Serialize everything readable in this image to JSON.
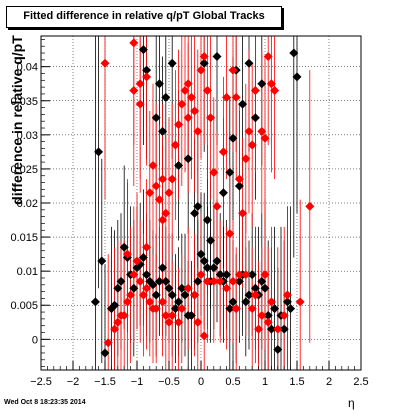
{
  "title": "Fitted difference in relative q/pT  Global Tracks",
  "ylabel": "difference in relative q/pT",
  "xlabel": "η",
  "footer": "Wed Oct  8 18:23:35 2014",
  "colors": {
    "series_black": "#000000",
    "series_red": "#ff0000",
    "grid": "#000000",
    "frame": "#000000"
  },
  "chart_data": {
    "type": "scatter",
    "title": "Fitted difference in relative q/pT  Global Tracks",
    "xlabel": "η",
    "ylabel": "difference in relative q/pT",
    "xlim": [
      -2.5,
      2.5
    ],
    "ylim": [
      -0.0045,
      0.0445
    ],
    "x_ticks": [
      -2.5,
      -2,
      -1.5,
      -1,
      -0.5,
      0,
      0.5,
      1,
      1.5,
      2,
      2.5
    ],
    "x_tick_labels": [
      "−2.5",
      "−2",
      "−1.5",
      "−1",
      "−0.5",
      "0",
      "0.5",
      "1",
      "1.5",
      "2",
      "2.5"
    ],
    "y_ticks": [
      0,
      0.005,
      0.01,
      0.015,
      0.02,
      0.025,
      0.03,
      0.035,
      0.04
    ],
    "y_tick_labels": [
      "0",
      "0.005",
      "0.01",
      "0.015",
      "0.02",
      "0.025",
      "0.03",
      "0.035",
      "0.04"
    ],
    "grid": true,
    "markers": "diamond",
    "series": [
      {
        "color": "#000000",
        "points": [
          [
            -1.65,
            0.0055,
            0.041
          ],
          [
            -1.6,
            0.0275,
            0.02
          ],
          [
            -1.55,
            0.0115,
            0.015
          ],
          [
            -1.5,
            -0.002,
            0.013
          ],
          [
            -1.4,
            0.0045,
            0.012
          ],
          [
            -1.35,
            0.005,
            0.011
          ],
          [
            -1.3,
            0.0075,
            0.01
          ],
          [
            -1.25,
            0.0085,
            0.01
          ],
          [
            -1.2,
            0.0135,
            0.012
          ],
          [
            -1.15,
            0.012,
            0.011
          ],
          [
            -1.1,
            0.0095,
            0.01
          ],
          [
            -1.05,
            0.0075,
            0.01
          ],
          [
            -1.0,
            0.0105,
            0.009
          ],
          [
            -0.95,
            0.011,
            0.009
          ],
          [
            -0.9,
            0.012,
            0.01
          ],
          [
            -0.85,
            0.0095,
            0.009
          ],
          [
            -0.8,
            0.0085,
            0.009
          ],
          [
            -0.75,
            0.008,
            0.008
          ],
          [
            -0.7,
            0.0065,
            0.009
          ],
          [
            -0.65,
            0.0085,
            0.008
          ],
          [
            -0.6,
            0.0105,
            0.01
          ],
          [
            -0.55,
            0.0085,
            0.008
          ],
          [
            -0.5,
            0.0075,
            0.008
          ],
          [
            -0.45,
            0.0065,
            0.009
          ],
          [
            -0.4,
            0.0045,
            0.008
          ],
          [
            -0.35,
            0.0055,
            0.008
          ],
          [
            -0.3,
            0.0075,
            0.008
          ],
          [
            -0.25,
            0.0065,
            0.009
          ],
          [
            -0.2,
            0.0035,
            0.008
          ],
          [
            -0.15,
            0.0035,
            0.008
          ],
          [
            -0.1,
            0.0065,
            0.008
          ],
          [
            -0.05,
            0.0085,
            0.009
          ],
          [
            0.0,
            0.0125,
            0.009
          ],
          [
            0.05,
            0.0115,
            0.01
          ],
          [
            0.1,
            0.0105,
            0.009
          ],
          [
            0.15,
            0.0085,
            0.009
          ],
          [
            0.2,
            0.0105,
            0.009
          ],
          [
            0.25,
            0.0115,
            0.009
          ],
          [
            0.3,
            0.0095,
            0.009
          ],
          [
            0.35,
            0.0085,
            0.009
          ],
          [
            0.4,
            0.0095,
            0.008
          ],
          [
            0.45,
            0.0045,
            0.009
          ],
          [
            0.5,
            0.0055,
            0.009
          ],
          [
            0.55,
            0.0045,
            0.008
          ],
          [
            0.6,
            0.0085,
            0.009
          ],
          [
            0.65,
            0.0095,
            0.009
          ],
          [
            0.7,
            0.0055,
            0.008
          ],
          [
            0.75,
            0.0065,
            0.008
          ],
          [
            0.8,
            0.0095,
            0.009
          ],
          [
            0.85,
            0.0075,
            0.009
          ],
          [
            0.9,
            0.0065,
            0.01
          ],
          [
            0.95,
            0.0085,
            0.01
          ],
          [
            1.0,
            0.0075,
            0.011
          ],
          [
            1.05,
            0.0035,
            0.011
          ],
          [
            1.1,
            0.0015,
            0.012
          ],
          [
            1.15,
            0.0045,
            0.012
          ],
          [
            1.2,
            -0.0015,
            0.012
          ],
          [
            1.25,
            0.0035,
            0.013
          ],
          [
            1.3,
            0.0015,
            0.013
          ],
          [
            1.35,
            0.0055,
            0.014
          ],
          [
            1.4,
            0.0045,
            0.015
          ],
          [
            1.45,
            0.042,
            0.03
          ],
          [
            1.5,
            0.0385,
            0.02
          ],
          [
            -0.9,
            0.0425,
            0.014
          ],
          [
            -0.85,
            0.0395,
            0.013
          ],
          [
            -0.65,
            0.0375,
            0.012
          ],
          [
            -0.55,
            0.0355,
            0.012
          ],
          [
            -0.45,
            0.0405,
            0.014
          ],
          [
            -0.7,
            0.0325,
            0.012
          ],
          [
            -0.6,
            0.0305,
            0.011
          ],
          [
            -0.35,
            0.0255,
            0.011
          ],
          [
            -0.2,
            0.0265,
            0.011
          ],
          [
            0.05,
            0.0405,
            0.013
          ],
          [
            0.25,
            0.0415,
            0.013
          ],
          [
            0.55,
            0.0395,
            0.012
          ],
          [
            0.65,
            0.0345,
            0.012
          ],
          [
            0.75,
            0.0405,
            0.013
          ],
          [
            0.5,
            0.0295,
            0.012
          ],
          [
            0.45,
            0.0245,
            0.011
          ],
          [
            0.6,
            0.0225,
            0.011
          ],
          [
            0.85,
            0.0325,
            0.012
          ],
          [
            0.95,
            0.0375,
            0.012
          ],
          [
            -0.05,
            0.0195,
            0.011
          ],
          [
            0.1,
            0.0175,
            0.011
          ],
          [
            0.35,
            0.0215,
            0.011
          ],
          [
            -0.1,
            0.0185,
            0.011
          ],
          [
            0.15,
            0.0145,
            0.01
          ]
        ]
      },
      {
        "color": "#ff0000",
        "points": [
          [
            -1.5,
            0.0405,
            0.02
          ],
          [
            -1.45,
            -0.0005,
            0.013
          ],
          [
            -1.35,
            0.0015,
            0.012
          ],
          [
            -1.3,
            0.0025,
            0.012
          ],
          [
            -1.25,
            0.0035,
            0.011
          ],
          [
            -1.2,
            0.0035,
            0.011
          ],
          [
            -1.15,
            0.0055,
            0.011
          ],
          [
            -1.1,
            0.0065,
            0.01
          ],
          [
            -1.05,
            0.0095,
            0.01
          ],
          [
            -1.0,
            0.0115,
            0.01
          ],
          [
            -0.95,
            0.0085,
            0.009
          ],
          [
            -0.9,
            0.0065,
            0.009
          ],
          [
            -0.85,
            0.0075,
            0.009
          ],
          [
            -0.8,
            0.0055,
            0.008
          ],
          [
            -0.75,
            0.0045,
            0.008
          ],
          [
            -0.7,
            0.0045,
            0.008
          ],
          [
            -0.6,
            0.0055,
            0.008
          ],
          [
            -0.55,
            0.0035,
            0.008
          ],
          [
            -0.5,
            0.0025,
            0.008
          ],
          [
            -0.45,
            0.0035,
            0.008
          ],
          [
            -0.35,
            0.0025,
            0.008
          ],
          [
            -0.3,
            0.0045,
            0.008
          ],
          [
            -0.2,
            0.0075,
            0.009
          ],
          [
            -0.1,
            0.0065,
            0.009
          ],
          [
            -0.05,
            0.0025,
            0.008
          ],
          [
            0.0,
            0.0095,
            0.009
          ],
          [
            0.05,
            0.0005,
            0.008
          ],
          [
            0.1,
            0.0085,
            0.009
          ],
          [
            0.2,
            0.0085,
            0.009
          ],
          [
            0.3,
            0.0085,
            0.009
          ],
          [
            0.4,
            0.0075,
            0.009
          ],
          [
            0.45,
            0.0155,
            0.01
          ],
          [
            0.5,
            0.0085,
            0.009
          ],
          [
            0.55,
            0.0045,
            0.009
          ],
          [
            0.6,
            0.0095,
            0.009
          ],
          [
            0.7,
            0.0095,
            0.009
          ],
          [
            0.8,
            0.0045,
            0.009
          ],
          [
            0.85,
            0.0065,
            0.01
          ],
          [
            0.9,
            0.0015,
            0.01
          ],
          [
            0.95,
            0.0035,
            0.01
          ],
          [
            1.0,
            0.0095,
            0.011
          ],
          [
            1.05,
            0.0025,
            0.011
          ],
          [
            1.1,
            0.0055,
            0.011
          ],
          [
            1.2,
            0.0015,
            0.012
          ],
          [
            1.3,
            0.0035,
            0.013
          ],
          [
            1.35,
            0.0065,
            0.013
          ],
          [
            1.55,
            0.0055,
            0.015
          ],
          [
            1.7,
            0.0195,
            0.02
          ],
          [
            -1.05,
            0.0435,
            0.015
          ],
          [
            -1.05,
            0.0365,
            0.014
          ],
          [
            -0.95,
            0.0375,
            0.014
          ],
          [
            -0.85,
            0.0385,
            0.013
          ],
          [
            -0.8,
            0.0215,
            0.012
          ],
          [
            -0.95,
            0.0345,
            0.013
          ],
          [
            -0.75,
            0.0255,
            0.012
          ],
          [
            -0.7,
            0.0225,
            0.012
          ],
          [
            -0.65,
            0.0205,
            0.011
          ],
          [
            -0.6,
            0.0175,
            0.011
          ],
          [
            -0.55,
            0.0185,
            0.011
          ],
          [
            -0.5,
            0.0215,
            0.011
          ],
          [
            -0.45,
            0.0235,
            0.011
          ],
          [
            -0.4,
            0.0285,
            0.011
          ],
          [
            -0.35,
            0.0315,
            0.011
          ],
          [
            -0.3,
            0.0345,
            0.012
          ],
          [
            -0.25,
            0.0365,
            0.012
          ],
          [
            -0.2,
            0.0375,
            0.012
          ],
          [
            -0.15,
            0.0355,
            0.012
          ],
          [
            -0.1,
            0.0335,
            0.012
          ],
          [
            -0.05,
            0.0305,
            0.012
          ],
          [
            0.0,
            0.0395,
            0.013
          ],
          [
            0.05,
            0.0415,
            0.013
          ],
          [
            0.1,
            0.0365,
            0.013
          ],
          [
            0.15,
            0.0325,
            0.012
          ],
          [
            0.2,
            0.0245,
            0.011
          ],
          [
            0.25,
            0.0195,
            0.011
          ],
          [
            0.35,
            0.0275,
            0.011
          ],
          [
            0.4,
            0.0355,
            0.012
          ],
          [
            0.5,
            0.0395,
            0.012
          ],
          [
            0.55,
            0.0355,
            0.012
          ],
          [
            0.6,
            0.0235,
            0.011
          ],
          [
            0.65,
            0.0185,
            0.011
          ],
          [
            0.7,
            0.0265,
            0.011
          ],
          [
            0.75,
            0.0305,
            0.012
          ],
          [
            0.8,
            0.0285,
            0.012
          ],
          [
            0.85,
            0.0365,
            0.012
          ],
          [
            0.95,
            0.0305,
            0.012
          ],
          [
            1.0,
            0.0295,
            0.012
          ],
          [
            1.05,
            0.0415,
            0.013
          ],
          [
            1.1,
            0.0375,
            0.013
          ],
          [
            1.15,
            0.0365,
            0.013
          ],
          [
            -0.6,
            0.0235,
            0.011
          ],
          [
            -0.85,
            0.0135,
            0.01
          ],
          [
            -1.15,
            0.0125,
            0.011
          ],
          [
            -0.2,
            0.0325,
            0.011
          ]
        ]
      }
    ]
  }
}
